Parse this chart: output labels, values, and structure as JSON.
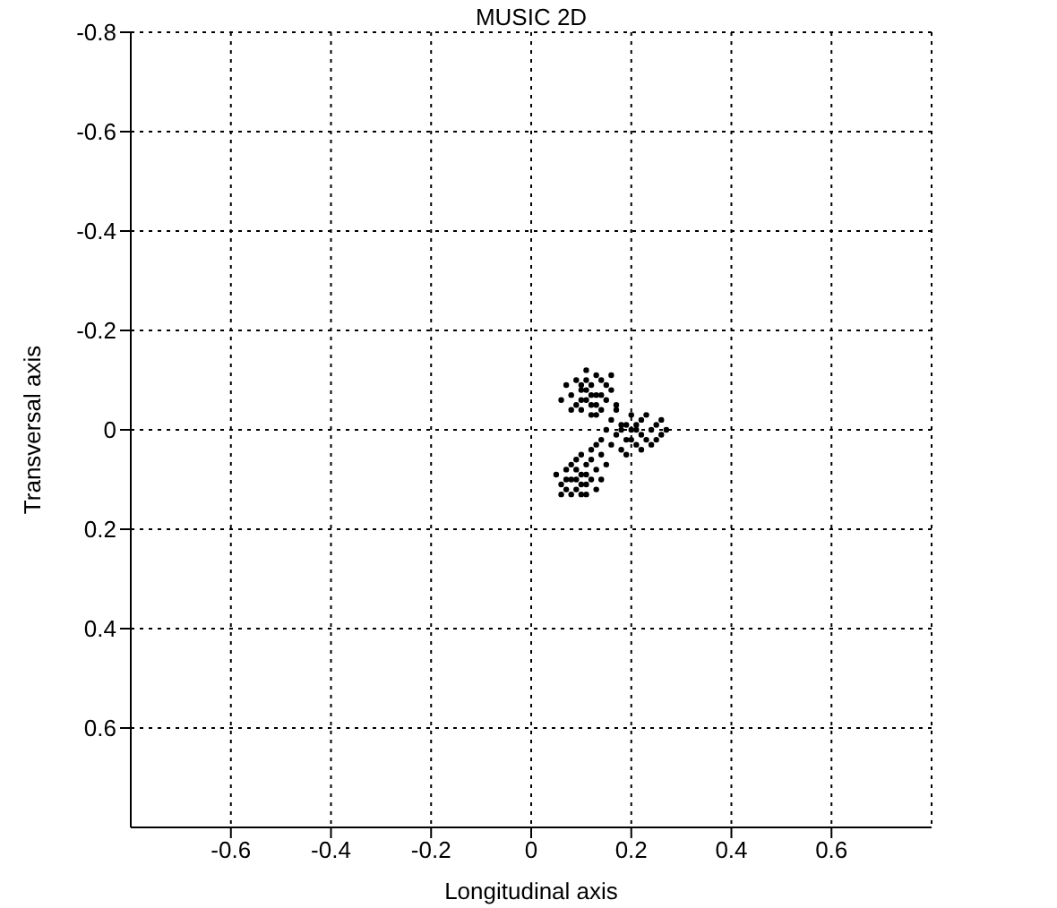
{
  "chart_data": {
    "type": "scatter",
    "title": "MUSIC 2D",
    "xlabel": "Longitudinal axis",
    "ylabel": "Transversal axis",
    "xlim": [
      -0.8,
      0.8
    ],
    "xticks": [
      -0.6,
      -0.4,
      -0.2,
      0,
      0.2,
      0.4,
      0.6
    ],
    "ylim": [
      0.8,
      -0.8
    ],
    "yticks": [
      -0.8,
      -0.6,
      -0.4,
      -0.2,
      0,
      0.2,
      0.4,
      0.6
    ],
    "grid": true,
    "marker": "circle",
    "series": [
      {
        "color": "#000000",
        "x": [
          0.1,
          0.12,
          0.11,
          0.13,
          0.09,
          0.14,
          0.12,
          0.1,
          0.08,
          0.15,
          0.13,
          0.11,
          0.16,
          0.09,
          0.14,
          0.12,
          0.1,
          0.07,
          0.15,
          0.13,
          0.11,
          0.17,
          0.08,
          0.12,
          0.14,
          0.1,
          0.16,
          0.06,
          0.13,
          0.11,
          0.18,
          0.2,
          0.22,
          0.19,
          0.21,
          0.24,
          0.17,
          0.23,
          0.25,
          0.2,
          0.18,
          0.22,
          0.26,
          0.16,
          0.19,
          0.21,
          0.24,
          0.27,
          0.15,
          0.17,
          0.2,
          0.23,
          0.18,
          0.22,
          0.16,
          0.25,
          0.21,
          0.19,
          0.14,
          0.26,
          0.1,
          0.08,
          0.11,
          0.09,
          0.12,
          0.07,
          0.1,
          0.13,
          0.08,
          0.11,
          0.06,
          0.12,
          0.09,
          0.14,
          0.1,
          0.07,
          0.13,
          0.05,
          0.11,
          0.09,
          0.12,
          0.08,
          0.15,
          0.1,
          0.06,
          0.14,
          0.11,
          0.09,
          0.13,
          0.07
        ],
        "values": [
          -0.08,
          -0.09,
          -0.06,
          -0.07,
          -0.1,
          -0.1,
          -0.05,
          -0.04,
          -0.07,
          -0.06,
          -0.11,
          -0.1,
          -0.08,
          -0.05,
          -0.04,
          -0.07,
          -0.09,
          -0.09,
          -0.09,
          -0.03,
          -0.12,
          -0.05,
          -0.04,
          -0.03,
          -0.07,
          -0.06,
          -0.11,
          -0.06,
          -0.05,
          -0.08,
          -0.01,
          0.0,
          -0.02,
          0.02,
          0.03,
          0.0,
          0.01,
          0.02,
          -0.01,
          -0.03,
          0.04,
          0.01,
          0.01,
          -0.02,
          -0.01,
          -0.01,
          0.03,
          0.0,
          0.0,
          -0.04,
          0.02,
          -0.03,
          0.0,
          0.04,
          0.03,
          0.02,
          0.0,
          0.05,
          0.02,
          -0.02,
          0.09,
          0.1,
          0.07,
          0.12,
          0.1,
          0.08,
          0.11,
          0.08,
          0.13,
          0.13,
          0.11,
          0.06,
          0.08,
          0.1,
          0.05,
          0.12,
          0.12,
          0.09,
          0.09,
          0.06,
          0.04,
          0.07,
          0.07,
          0.13,
          0.13,
          0.05,
          0.11,
          0.1,
          0.03,
          0.1
        ]
      }
    ]
  }
}
